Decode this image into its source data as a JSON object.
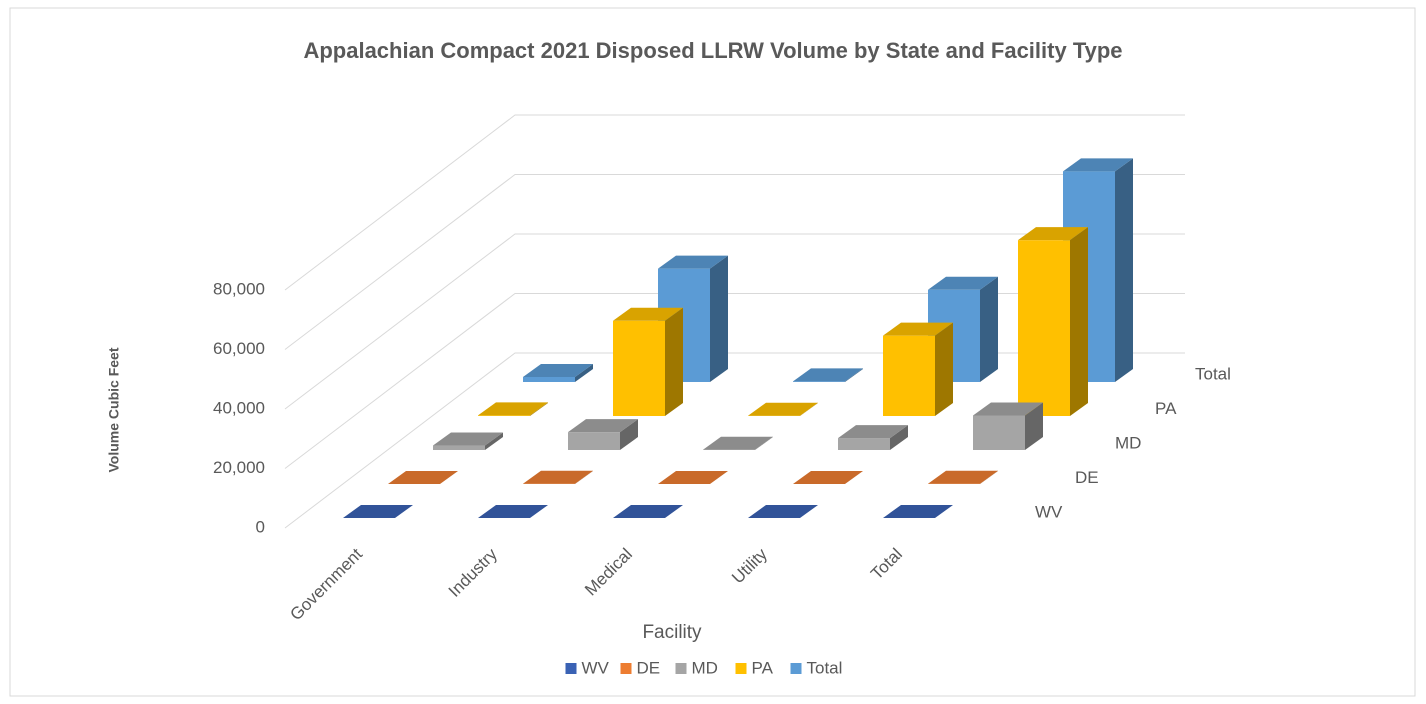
{
  "chart_data": {
    "type": "bar",
    "title": "Appalachian Compact 2021 Disposed LLRW Volume by State and Facility Type",
    "x_label": "Facility",
    "y_label": "Volume Cubic Feet",
    "categories": [
      "Government",
      "Industry",
      "Medical",
      "Utility",
      "Total"
    ],
    "series": [
      {
        "name": "WV",
        "color": "#3a62b4",
        "values": [
          0,
          0,
          0,
          0,
          0
        ]
      },
      {
        "name": "DE",
        "color": "#ed7d31",
        "values": [
          0,
          100,
          0,
          0,
          100
        ]
      },
      {
        "name": "MD",
        "color": "#a5a5a5",
        "values": [
          1500,
          6000,
          100,
          4000,
          11600
        ]
      },
      {
        "name": "PA",
        "color": "#ffc000",
        "values": [
          200,
          32000,
          100,
          27000,
          59100
        ]
      },
      {
        "name": "Total",
        "color": "#5b9bd5",
        "values": [
          1700,
          38100,
          200,
          31000,
          70800
        ]
      }
    ],
    "ylim": [
      0,
      80000
    ],
    "yticks": [
      0,
      {
        "value": 20000,
        "label": "20,000"
      },
      {
        "value": 40000,
        "label": "40,000"
      },
      {
        "value": 60000,
        "label": "60,000"
      },
      {
        "value": 80000,
        "label": "80,000"
      }
    ],
    "grid": true,
    "legend": "bottom"
  }
}
